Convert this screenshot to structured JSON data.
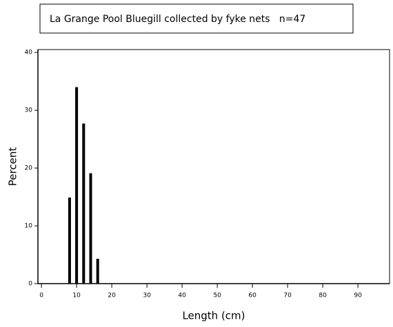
{
  "chart_data": {
    "type": "bar",
    "title": "La Grange Pool Bluegill collected by fyke nets   n=47",
    "x": [
      8,
      10,
      12,
      14,
      16
    ],
    "values": [
      14.9,
      34.0,
      27.7,
      19.1,
      4.3
    ],
    "color": "#000000",
    "xlabel": "Length (cm)",
    "ylabel": "Percent",
    "xlim": [
      -1,
      99
    ],
    "xticks": [
      0,
      10,
      20,
      30,
      40,
      50,
      60,
      70,
      80,
      90
    ],
    "ylim": [
      0,
      40.5
    ],
    "yticks": [
      0,
      10,
      20,
      30,
      40
    ]
  }
}
